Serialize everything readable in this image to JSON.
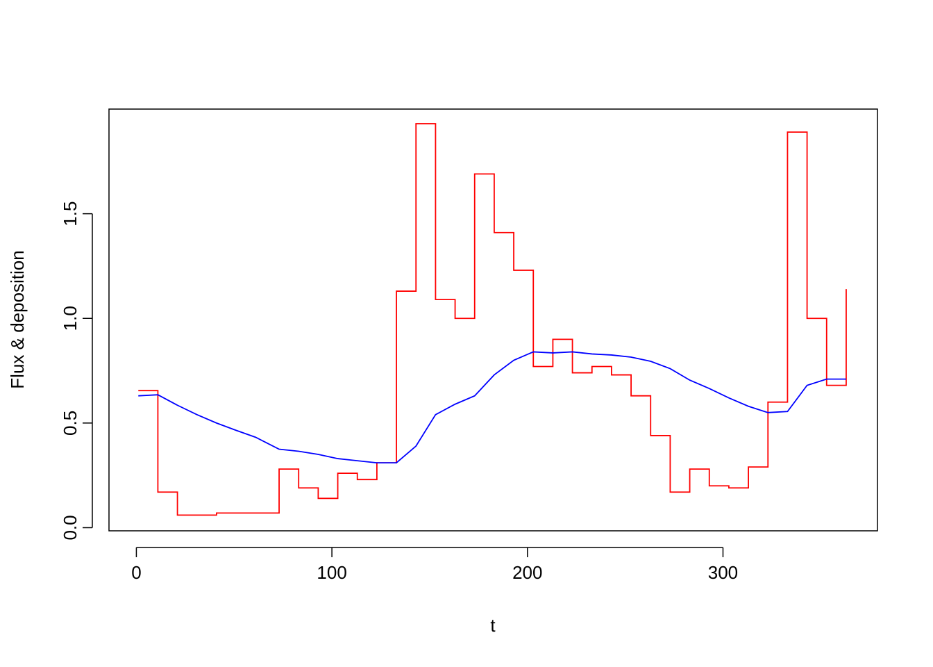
{
  "chart_data": {
    "type": "line",
    "title": "",
    "xlabel": "t",
    "ylabel": "Flux & deposition",
    "xlim": [
      -14,
      379
    ],
    "ylim": [
      -0.015,
      2.0
    ],
    "grid": false,
    "xticks": [
      0,
      100,
      200,
      300
    ],
    "xtick_labels": [
      "0",
      "100",
      "200",
      "300"
    ],
    "yticks": [
      0.0,
      0.5,
      1.0,
      1.5
    ],
    "ytick_labels": [
      "0.0",
      "0.5",
      "1.0",
      "1.5"
    ],
    "series": [
      {
        "color": "#ff0000",
        "style": "step",
        "x": [
          1,
          11,
          21,
          41,
          73,
          83,
          93,
          103,
          113,
          123,
          133,
          143,
          153,
          163,
          173,
          183,
          193,
          203,
          213,
          223,
          233,
          243,
          253,
          263,
          273,
          283,
          293,
          303,
          313,
          323,
          333,
          343,
          353,
          363
        ],
        "values": [
          0.655,
          0.17,
          0.06,
          0.07,
          0.28,
          0.19,
          0.14,
          0.26,
          0.23,
          0.31,
          1.13,
          1.93,
          1.09,
          1.0,
          1.69,
          1.41,
          1.23,
          0.77,
          0.9,
          0.74,
          0.77,
          0.73,
          0.63,
          0.44,
          0.17,
          0.28,
          0.2,
          0.19,
          0.29,
          0.6,
          1.89,
          1.0,
          0.68,
          1.14
        ]
      },
      {
        "color": "#0000ff",
        "style": "line",
        "x": [
          1,
          11,
          21,
          31,
          41,
          51,
          61,
          73,
          83,
          93,
          103,
          113,
          123,
          133,
          143,
          153,
          163,
          173,
          183,
          193,
          203,
          213,
          223,
          233,
          243,
          253,
          263,
          273,
          283,
          293,
          303,
          313,
          323,
          333,
          343,
          353,
          363
        ],
        "values": [
          0.63,
          0.635,
          0.585,
          0.54,
          0.5,
          0.465,
          0.432,
          0.375,
          0.365,
          0.35,
          0.33,
          0.32,
          0.31,
          0.31,
          0.39,
          0.54,
          0.59,
          0.63,
          0.73,
          0.8,
          0.84,
          0.835,
          0.84,
          0.83,
          0.825,
          0.815,
          0.795,
          0.76,
          0.705,
          0.665,
          0.62,
          0.58,
          0.55,
          0.555,
          0.68,
          0.71,
          0.71
        ]
      }
    ]
  }
}
